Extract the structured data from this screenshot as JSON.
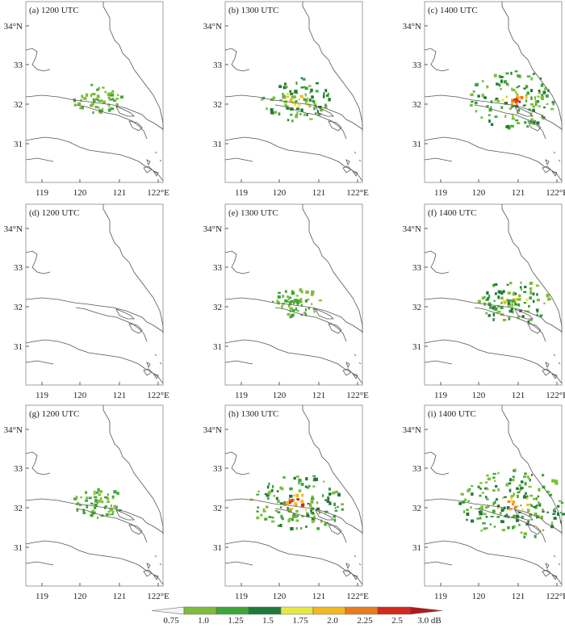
{
  "panels": [
    {
      "label": "(a)  1200  UTC",
      "intensity": 1
    },
    {
      "label": "(b)  1300  UTC",
      "intensity": 2
    },
    {
      "label": "(c)  1400  UTC",
      "intensity": 3
    },
    {
      "label": "(d)  1200  UTC",
      "intensity": 0
    },
    {
      "label": "(e)  1300  UTC",
      "intensity": 1
    },
    {
      "label": "(f)  1400  UTC",
      "intensity": 2
    },
    {
      "label": "(g)  1200  UTC",
      "intensity": 1
    },
    {
      "label": "(h)  1300  UTC",
      "intensity": 3
    },
    {
      "label": "(i)  1400  UTC",
      "intensity": 4
    }
  ],
  "axes": {
    "lat_labels": [
      "34°N",
      "33",
      "32",
      "31"
    ],
    "lon_labels": [
      "119",
      "120",
      "121",
      "122°E"
    ]
  },
  "colorbar": {
    "labels": [
      "0.75",
      "1.0",
      "1.25",
      "1.5",
      "1.75",
      "2.0",
      "2.25",
      "2.5",
      "3.0 dB"
    ],
    "colors": [
      "#f4f4f4",
      "#7cbd3a",
      "#3ea638",
      "#1e7a3a",
      "#e8e845",
      "#f2b81f",
      "#e97b20",
      "#d42a1e",
      "#b21a1a"
    ]
  }
}
